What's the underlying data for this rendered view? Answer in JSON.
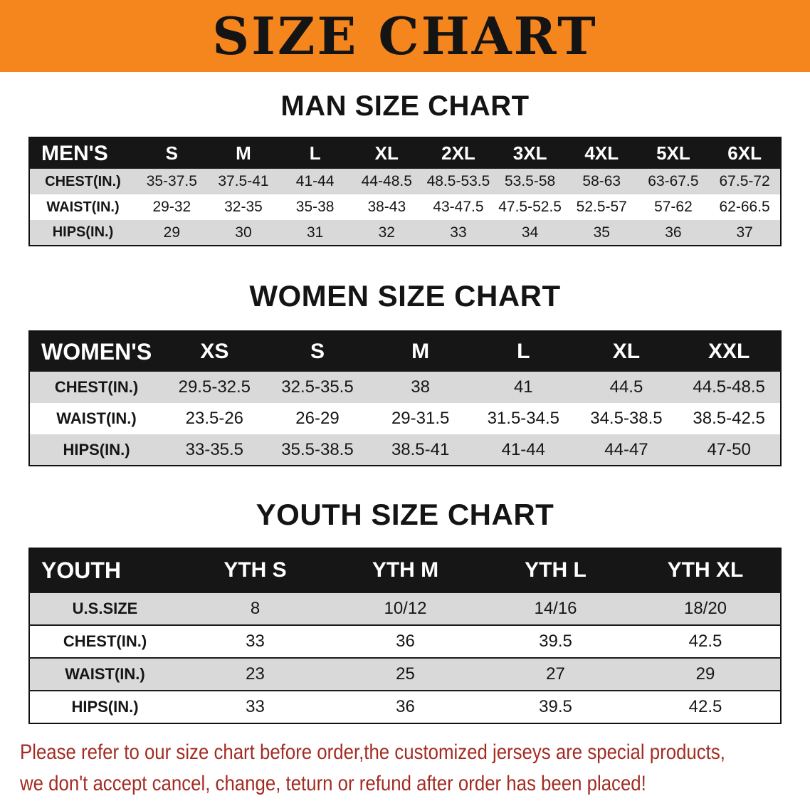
{
  "banner": {
    "title": "SIZE CHART"
  },
  "colors": {
    "banner_bg": "#f4861d",
    "header_bg": "#161616",
    "row_alt": "#d9d9d9",
    "disclaimer": "#a32b22"
  },
  "sections": [
    {
      "heading": "MAN SIZE CHART",
      "table": {
        "header": [
          "MEN'S",
          "S",
          "M",
          "L",
          "XL",
          "2XL",
          "3XL",
          "4XL",
          "5XL",
          "6XL"
        ],
        "rows": [
          [
            "CHEST(IN.)",
            "35-37.5",
            "37.5-41",
            "41-44",
            "44-48.5",
            "48.5-53.5",
            "53.5-58",
            "58-63",
            "63-67.5",
            "67.5-72"
          ],
          [
            "WAIST(IN.)",
            "29-32",
            "32-35",
            "35-38",
            "38-43",
            "43-47.5",
            "47.5-52.5",
            "52.5-57",
            "57-62",
            "62-66.5"
          ],
          [
            "HIPS(IN.)",
            "29",
            "30",
            "31",
            "32",
            "33",
            "34",
            "35",
            "36",
            "37"
          ]
        ]
      }
    },
    {
      "heading": "WOMEN SIZE CHART",
      "table": {
        "header": [
          "WOMEN'S",
          "XS",
          "S",
          "M",
          "L",
          "XL",
          "XXL"
        ],
        "rows": [
          [
            "CHEST(IN.)",
            "29.5-32.5",
            "32.5-35.5",
            "38",
            "41",
            "44.5",
            "44.5-48.5"
          ],
          [
            "WAIST(IN.)",
            "23.5-26",
            "26-29",
            "29-31.5",
            "31.5-34.5",
            "34.5-38.5",
            "38.5-42.5"
          ],
          [
            "HIPS(IN.)",
            "33-35.5",
            "35.5-38.5",
            "38.5-41",
            "41-44",
            "44-47",
            "47-50"
          ]
        ]
      }
    },
    {
      "heading": "YOUTH SIZE CHART",
      "table": {
        "header": [
          "YOUTH",
          "YTH S",
          "YTH M",
          "YTH L",
          "YTH XL"
        ],
        "rows": [
          [
            "U.S.SIZE",
            "8",
            "10/12",
            "14/16",
            "18/20"
          ],
          [
            "CHEST(IN.)",
            "33",
            "36",
            "39.5",
            "42.5"
          ],
          [
            "WAIST(IN.)",
            "23",
            "25",
            "27",
            "29"
          ],
          [
            "HIPS(IN.)",
            "33",
            "36",
            "39.5",
            "42.5"
          ]
        ]
      }
    }
  ],
  "disclaimer": {
    "line1": "Please refer to our size chart before order,the customized jerseys are special products,",
    "line2": "we don't accept cancel, change, teturn or refund after order has been placed!"
  }
}
